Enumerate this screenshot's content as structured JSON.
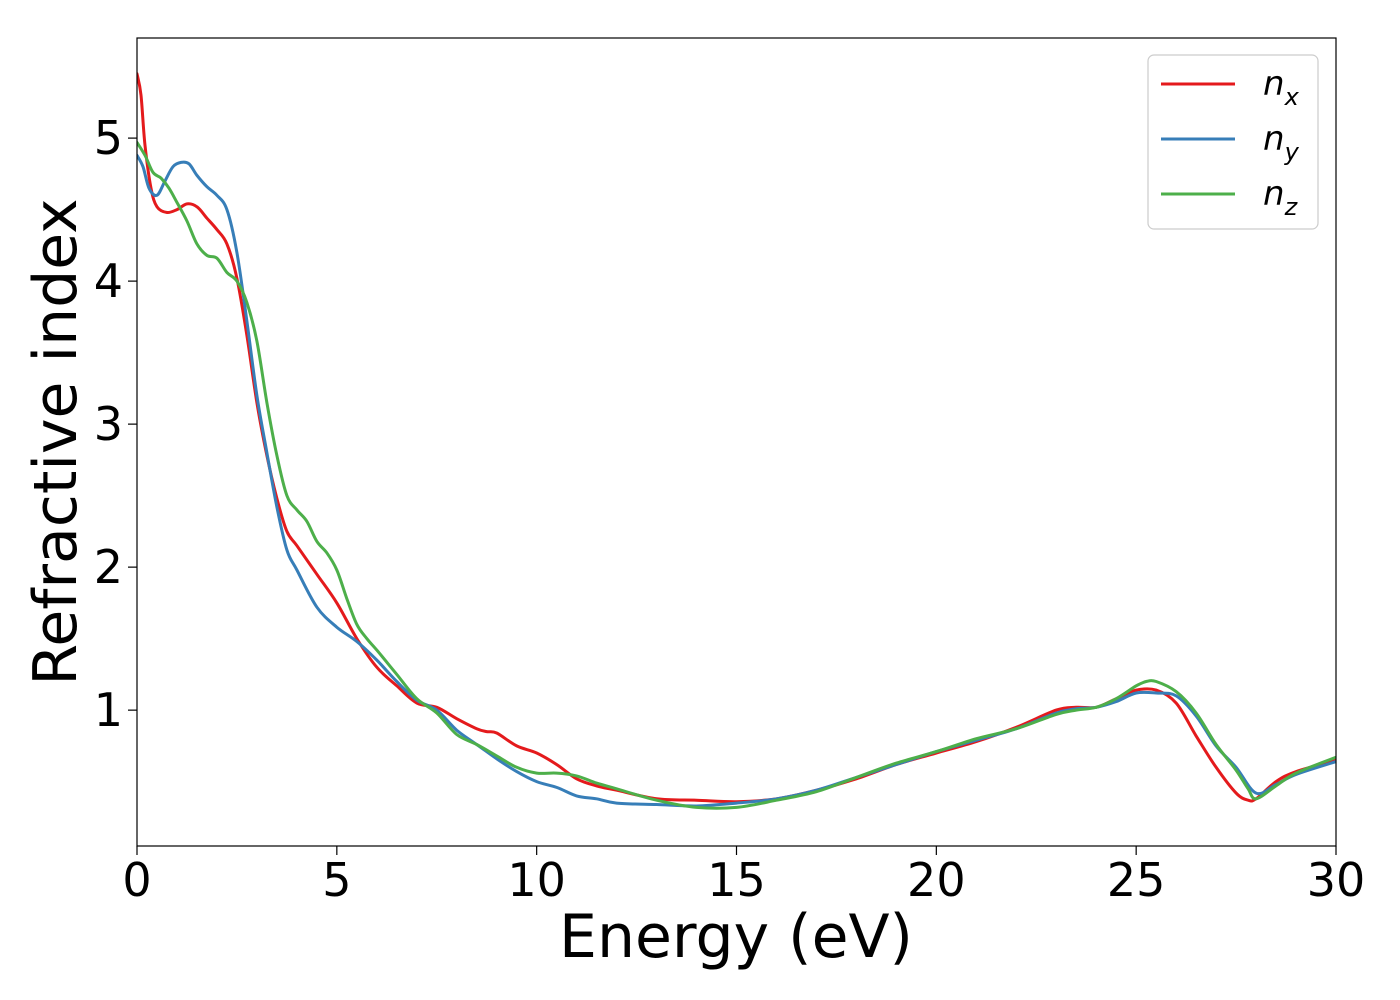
{
  "chart_data": {
    "type": "line",
    "title": "",
    "xlabel": "Energy (eV)",
    "ylabel": "Refractive index",
    "xlim": [
      0,
      30
    ],
    "ylim": [
      0.05,
      5.7
    ],
    "xticks": [
      "0",
      "5",
      "10",
      "15",
      "20",
      "25",
      "30"
    ],
    "yticks": [
      "1",
      "2",
      "3",
      "4",
      "5"
    ],
    "grid": false,
    "legend_position": "top-right",
    "series": [
      {
        "name": "n",
        "subscript": "x",
        "color": "#e41a1c",
        "x": [
          0,
          0.1,
          0.2,
          0.35,
          0.5,
          0.75,
          1,
          1.25,
          1.5,
          1.75,
          2,
          2.25,
          2.5,
          2.75,
          3,
          3.25,
          3.5,
          3.75,
          4,
          4.5,
          5,
          5.5,
          6,
          6.5,
          7,
          7.5,
          8,
          8.5,
          8.75,
          9,
          9.5,
          10,
          10.5,
          11,
          11.5,
          12,
          13,
          14,
          15,
          16,
          17,
          18,
          19,
          20,
          21,
          22,
          23,
          23.5,
          24,
          24.5,
          25,
          25.5,
          26,
          26.5,
          27,
          27.5,
          27.8,
          28,
          28.5,
          29,
          30
        ],
        "y": [
          5.45,
          5.3,
          4.95,
          4.65,
          4.52,
          4.48,
          4.5,
          4.54,
          4.52,
          4.44,
          4.36,
          4.26,
          4.02,
          3.62,
          3.15,
          2.78,
          2.48,
          2.25,
          2.15,
          1.95,
          1.75,
          1.5,
          1.3,
          1.17,
          1.05,
          1.02,
          0.94,
          0.87,
          0.85,
          0.84,
          0.75,
          0.7,
          0.62,
          0.52,
          0.47,
          0.44,
          0.38,
          0.37,
          0.36,
          0.38,
          0.44,
          0.52,
          0.62,
          0.7,
          0.78,
          0.88,
          1.0,
          1.02,
          1.02,
          1.08,
          1.14,
          1.14,
          1.05,
          0.82,
          0.6,
          0.42,
          0.37,
          0.38,
          0.5,
          0.57,
          0.65
        ]
      },
      {
        "name": "n",
        "subscript": "y",
        "color": "#377eb8",
        "x": [
          0,
          0.15,
          0.3,
          0.5,
          0.7,
          0.9,
          1.1,
          1.3,
          1.5,
          1.75,
          2,
          2.25,
          2.5,
          2.75,
          3,
          3.25,
          3.5,
          3.75,
          4,
          4.5,
          5,
          5.5,
          6,
          6.5,
          7,
          7.5,
          8,
          8.5,
          9,
          9.5,
          10,
          10.5,
          11,
          11.5,
          12,
          13,
          14,
          15,
          16,
          17,
          18,
          19,
          20,
          21,
          22,
          23,
          23.5,
          24,
          24.5,
          25,
          25.5,
          26,
          26.5,
          27,
          27.5,
          28,
          28.5,
          29,
          30
        ],
        "y": [
          4.88,
          4.8,
          4.65,
          4.6,
          4.7,
          4.8,
          4.83,
          4.82,
          4.74,
          4.66,
          4.6,
          4.5,
          4.2,
          3.72,
          3.2,
          2.8,
          2.42,
          2.12,
          1.98,
          1.72,
          1.58,
          1.48,
          1.35,
          1.2,
          1.07,
          1.0,
          0.86,
          0.76,
          0.66,
          0.57,
          0.5,
          0.46,
          0.4,
          0.38,
          0.35,
          0.34,
          0.33,
          0.35,
          0.38,
          0.44,
          0.53,
          0.62,
          0.71,
          0.79,
          0.87,
          0.98,
          1.01,
          1.02,
          1.06,
          1.12,
          1.12,
          1.1,
          0.96,
          0.75,
          0.6,
          0.42,
          0.48,
          0.55,
          0.64
        ]
      },
      {
        "name": "n",
        "subscript": "z",
        "color": "#4daf4a",
        "x": [
          0,
          0.2,
          0.4,
          0.6,
          0.8,
          1,
          1.25,
          1.5,
          1.75,
          2,
          2.25,
          2.5,
          2.75,
          3,
          3.25,
          3.5,
          3.75,
          4,
          4.25,
          4.5,
          4.75,
          5,
          5.25,
          5.5,
          5.75,
          6,
          6.5,
          7,
          7.5,
          8,
          8.5,
          9,
          9.5,
          10,
          10.5,
          11,
          11.5,
          12,
          13,
          14,
          15,
          16,
          17,
          18,
          19,
          20,
          21,
          22,
          23,
          23.5,
          24,
          24.5,
          25,
          25.25,
          25.5,
          26,
          26.5,
          27,
          27.5,
          27.8,
          28,
          28.5,
          29,
          30
        ],
        "y": [
          4.97,
          4.88,
          4.76,
          4.72,
          4.65,
          4.55,
          4.42,
          4.26,
          4.18,
          4.16,
          4.06,
          4.0,
          3.85,
          3.58,
          3.15,
          2.78,
          2.5,
          2.4,
          2.32,
          2.18,
          2.1,
          1.98,
          1.78,
          1.6,
          1.5,
          1.42,
          1.25,
          1.08,
          0.98,
          0.83,
          0.76,
          0.68,
          0.6,
          0.56,
          0.56,
          0.54,
          0.49,
          0.45,
          0.37,
          0.32,
          0.32,
          0.37,
          0.43,
          0.53,
          0.63,
          0.71,
          0.8,
          0.87,
          0.97,
          1.0,
          1.02,
          1.08,
          1.17,
          1.2,
          1.2,
          1.13,
          0.98,
          0.76,
          0.58,
          0.45,
          0.38,
          0.47,
          0.56,
          0.67
        ]
      }
    ]
  }
}
